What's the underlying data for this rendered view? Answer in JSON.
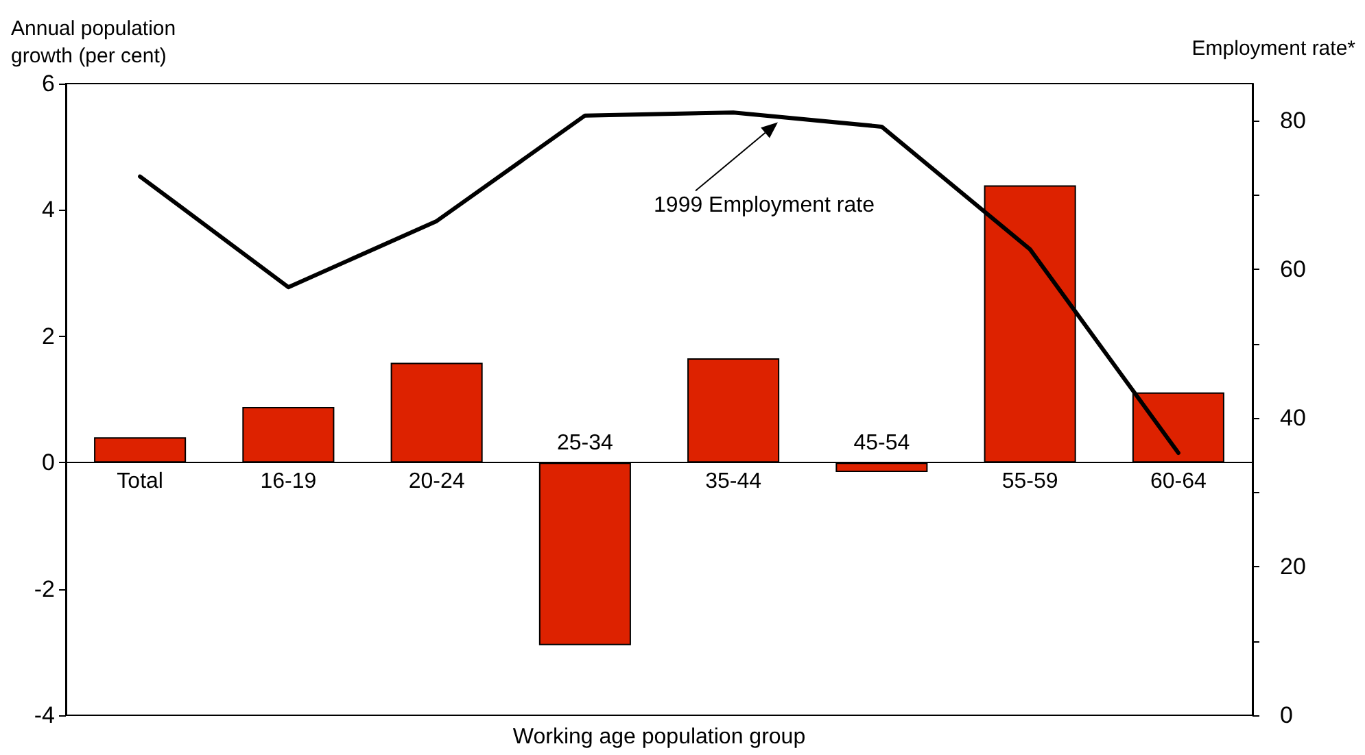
{
  "chart_data": {
    "type": "bar",
    "xlabel": "Working age population group",
    "ylabel": "Annual population\ngrowth (per cent)",
    "y2label": "Employment rate*",
    "categories": [
      "Total",
      "16-19",
      "20-24",
      "25-34",
      "35-44",
      "45-54",
      "55-59",
      "60-64"
    ],
    "series": [
      {
        "color": "#dd2200",
        "values": [
          0.4,
          0.88,
          1.58,
          -2.89,
          1.65,
          -0.15,
          4.39,
          1.11
        ]
      },
      {
        "type": "line",
        "name": "1999 Employment rate",
        "axis": "y2",
        "color": "#000000",
        "marker": "none",
        "line_style": "solid",
        "values": [
          72.5,
          57.6,
          66.5,
          80.7,
          81.1,
          79.2,
          62.7,
          35.3
        ]
      }
    ],
    "ylim": [
      -4,
      6
    ],
    "yticks": [
      -4,
      -2,
      0,
      2,
      4,
      6
    ],
    "y2lim": [
      0,
      85
    ],
    "y2ticks": [
      0,
      {
        "value": 10,
        "label": null
      },
      20,
      {
        "value": 30,
        "label": null
      },
      40,
      {
        "value": 50,
        "label": null
      },
      60,
      {
        "value": 70,
        "label": null
      },
      80
    ],
    "grid": false,
    "legend": false
  }
}
